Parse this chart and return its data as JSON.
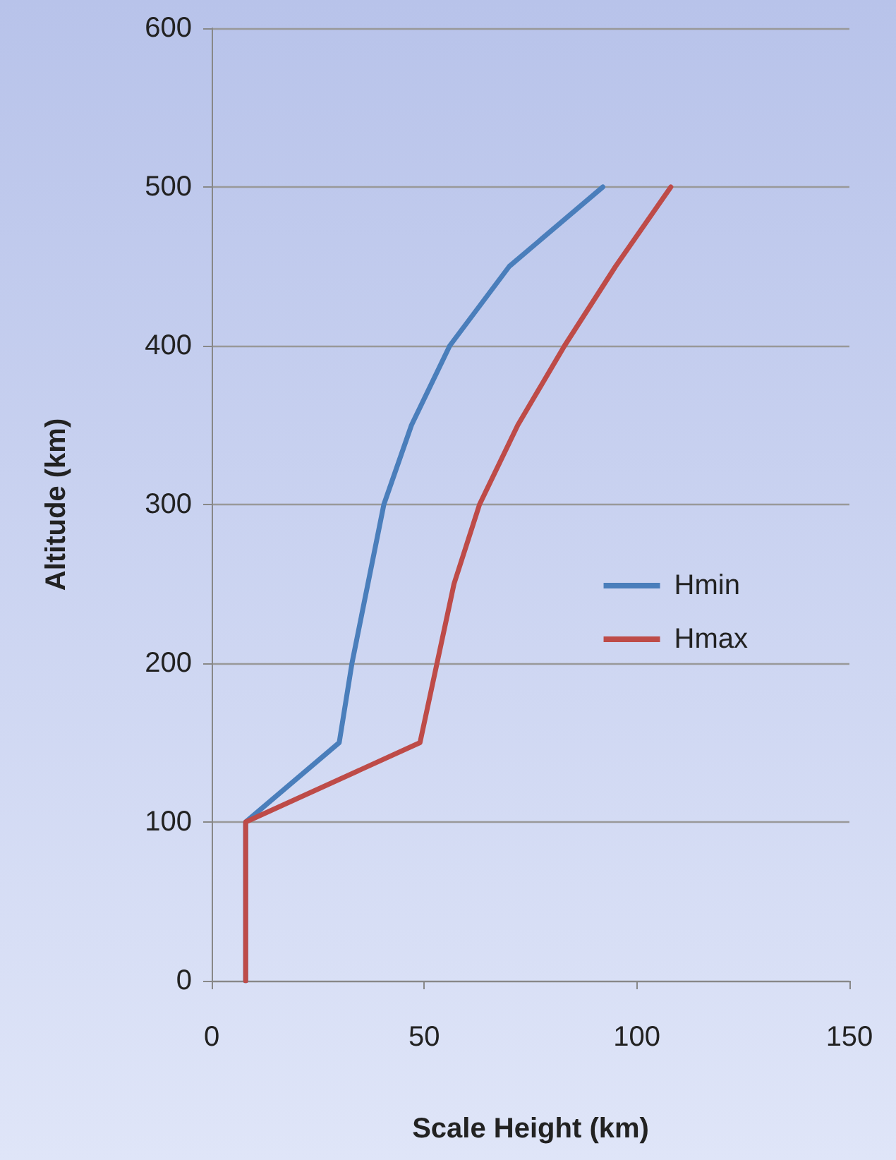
{
  "chart_data": {
    "type": "line",
    "xlabel": "Scale Height (km)",
    "ylabel": "Altitude (km)",
    "xlim": [
      0,
      150
    ],
    "xticks": [
      0,
      50,
      100,
      150
    ],
    "ylim": [
      0,
      600
    ],
    "yticks": [
      0,
      100,
      200,
      300,
      400,
      500,
      600
    ],
    "grid": "y",
    "legend": "right",
    "marker": "none",
    "line_style": "solid",
    "series": [
      {
        "name": "Hmin",
        "color": "#4a7ebb",
        "x": [
          8,
          8,
          30,
          33,
          40.5,
          47,
          56,
          70,
          92
        ],
        "values": [
          0,
          100,
          150,
          200,
          300,
          350,
          400,
          450,
          500
        ]
      },
      {
        "name": "Hmax",
        "color": "#be4b48",
        "x": [
          8,
          8,
          49,
          53,
          57,
          63,
          72,
          83,
          95,
          108
        ],
        "values": [
          0,
          100,
          150,
          200,
          250,
          300,
          350,
          400,
          450,
          500
        ]
      }
    ]
  }
}
